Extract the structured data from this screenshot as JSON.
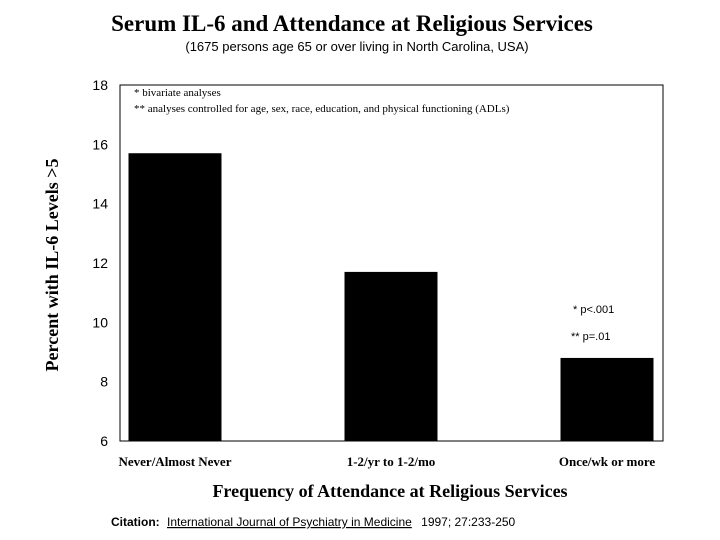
{
  "chart_data": {
    "type": "bar",
    "title": "Serum IL-6 and Attendance at Religious Services",
    "subtitle": "(1675 persons age 65 or over living in North Carolina, USA)",
    "xlabel": "Frequency of Attendance at Religious Services",
    "ylabel": "Percent with IL-6 Levels >5",
    "categories": [
      "Never/Almost Never",
      "1-2/yr to 1-2/mo",
      "Once/wk or more"
    ],
    "values": [
      15.7,
      11.7,
      8.8
    ],
    "ylim": [
      6,
      18
    ],
    "yticks": [
      6,
      8,
      10,
      12,
      14,
      16,
      18
    ],
    "grid": false,
    "colors": {
      "bar": "#000000",
      "background": "#ffffff"
    },
    "annotations": {
      "footnote_1": "* bivariate analyses",
      "footnote_2": "** analyses controlled for age, sex, race, education, and  physical functioning (ADLs)",
      "sig_1": "* p<.001",
      "sig_2": "** p=.01"
    }
  },
  "citation": {
    "label": "Citation:",
    "journal": "International Journal of Psychiatry in Medicine",
    "details": "1997; 27:233-250"
  }
}
